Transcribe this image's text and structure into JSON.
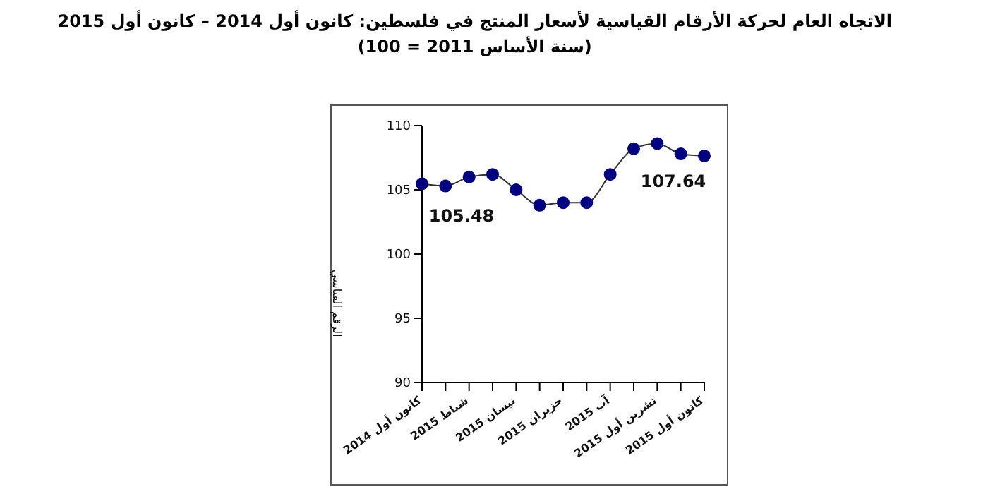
{
  "chart_data": {
    "type": "line",
    "title": "الاتجاه العام لحركة الأرقام القياسية لأسعار المنتج في فلسطين:    كانون أول 2014 – كانون أول 2015",
    "subtitle": "(سنة الأساس 2011 = 100)",
    "ylabel": "الرقم القياسي",
    "categories": [
      "كانون أول 2014",
      null,
      "شباط 2015",
      null,
      "نيسان 2015",
      null,
      "حزيران 2015",
      null,
      "آب 2015",
      null,
      "تشرين أول 2015",
      null,
      "كانون أول 2015"
    ],
    "series": [
      {
        "color": "#000080",
        "values": [
          105.48,
          105.3,
          106.0,
          106.2,
          105.0,
          103.8,
          104.0,
          104.0,
          106.2,
          108.2,
          108.6,
          107.8,
          107.64
        ],
        "value_labels": [
          "105.48",
          null,
          null,
          null,
          null,
          null,
          null,
          null,
          null,
          null,
          null,
          null,
          "107.64"
        ]
      }
    ],
    "ylim": [
      90,
      110
    ],
    "yticks": [
      90,
      95,
      100,
      105,
      110
    ],
    "grid": false,
    "legend": false,
    "marker": "circle",
    "line_style": "solid"
  }
}
